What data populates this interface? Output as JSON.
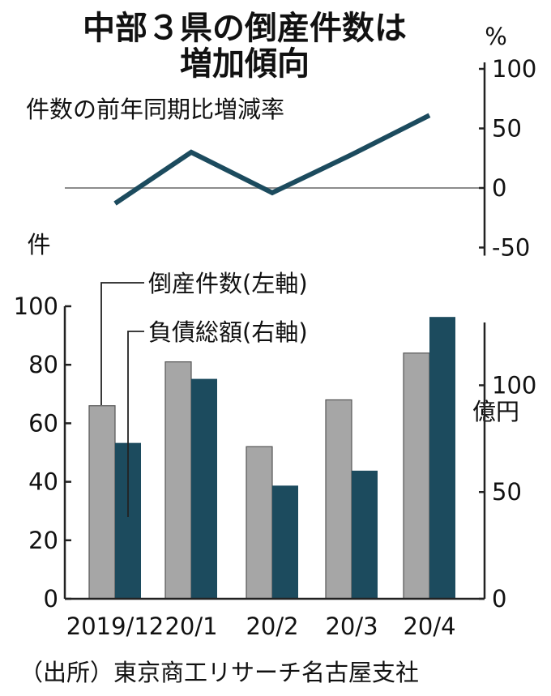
{
  "title": {
    "line1": "中部３県の倒産件数は",
    "line2": "増加傾向"
  },
  "source": "（出所）東京商工リサーチ名古屋支社",
  "colors": {
    "count_bar": "#a6a6a6",
    "debt_bar": "#1c4b5e",
    "line": "#1c4b5e",
    "zero_line": "#8c8c8c",
    "bar_edge": "#555555"
  },
  "chart_data": [
    {
      "type": "line",
      "title": "件数の前年同期比増減率",
      "unit": "%",
      "categories": [
        "2019/12",
        "20/1",
        "20/2",
        "20/3",
        "20/4"
      ],
      "values": [
        -13,
        30,
        -4,
        28,
        61
      ],
      "ylim": [
        -50,
        100
      ],
      "yticks": [
        "100",
        "50",
        "0",
        "-50"
      ],
      "zero_line": true
    },
    {
      "type": "bar",
      "categories": [
        "2019/12",
        "20/1",
        "20/2",
        "20/3",
        "20/4"
      ],
      "left_axis": {
        "unit": "件",
        "ylim": [
          0,
          100
        ],
        "ticks": [
          "100",
          "80",
          "60",
          "40",
          "20",
          "0"
        ]
      },
      "right_axis": {
        "unit": "億円",
        "ylim": [
          0,
          137
        ],
        "ticks": [
          "100",
          "50",
          "0"
        ]
      },
      "series": [
        {
          "name": "倒産件数(左軸)",
          "axis": "left",
          "values": [
            66,
            81,
            52,
            68,
            84
          ]
        },
        {
          "name": "負債総額(右軸)",
          "axis": "right",
          "values": [
            73,
            103,
            53,
            60,
            132
          ]
        }
      ]
    }
  ]
}
